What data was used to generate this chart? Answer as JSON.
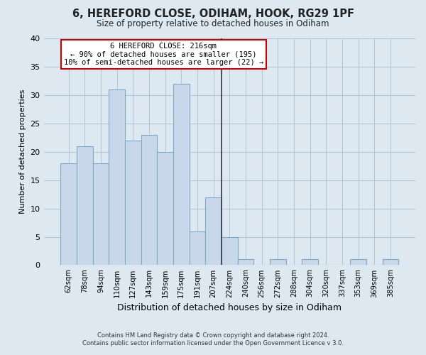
{
  "title": "6, HEREFORD CLOSE, ODIHAM, HOOK, RG29 1PF",
  "subtitle": "Size of property relative to detached houses in Odiham",
  "xlabel": "Distribution of detached houses by size in Odiham",
  "ylabel": "Number of detached properties",
  "bar_labels": [
    "62sqm",
    "78sqm",
    "94sqm",
    "110sqm",
    "127sqm",
    "143sqm",
    "159sqm",
    "175sqm",
    "191sqm",
    "207sqm",
    "224sqm",
    "240sqm",
    "256sqm",
    "272sqm",
    "288sqm",
    "304sqm",
    "320sqm",
    "337sqm",
    "353sqm",
    "369sqm",
    "385sqm"
  ],
  "bar_heights": [
    18,
    21,
    18,
    31,
    22,
    23,
    20,
    32,
    6,
    12,
    5,
    1,
    0,
    1,
    0,
    1,
    0,
    0,
    1,
    0,
    1
  ],
  "bar_color": "#c8d8ea",
  "bar_edge_color": "#7daac8",
  "ylim": [
    0,
    40
  ],
  "yticks": [
    0,
    5,
    10,
    15,
    20,
    25,
    30,
    35,
    40
  ],
  "vline_x_index": 9.5,
  "vline_color": "#333355",
  "annotation_title": "6 HEREFORD CLOSE: 216sqm",
  "annotation_line1": "← 90% of detached houses are smaller (195)",
  "annotation_line2": "10% of semi-detached houses are larger (22) →",
  "annotation_box_color": "#ffffff",
  "annotation_box_edge_color": "#cc0000",
  "footer_line1": "Contains HM Land Registry data © Crown copyright and database right 2024.",
  "footer_line2": "Contains public sector information licensed under the Open Government Licence v 3.0.",
  "background_color": "#dde8f0",
  "plot_background_color": "#dde8f0",
  "grid_color": "#b0c4d8"
}
